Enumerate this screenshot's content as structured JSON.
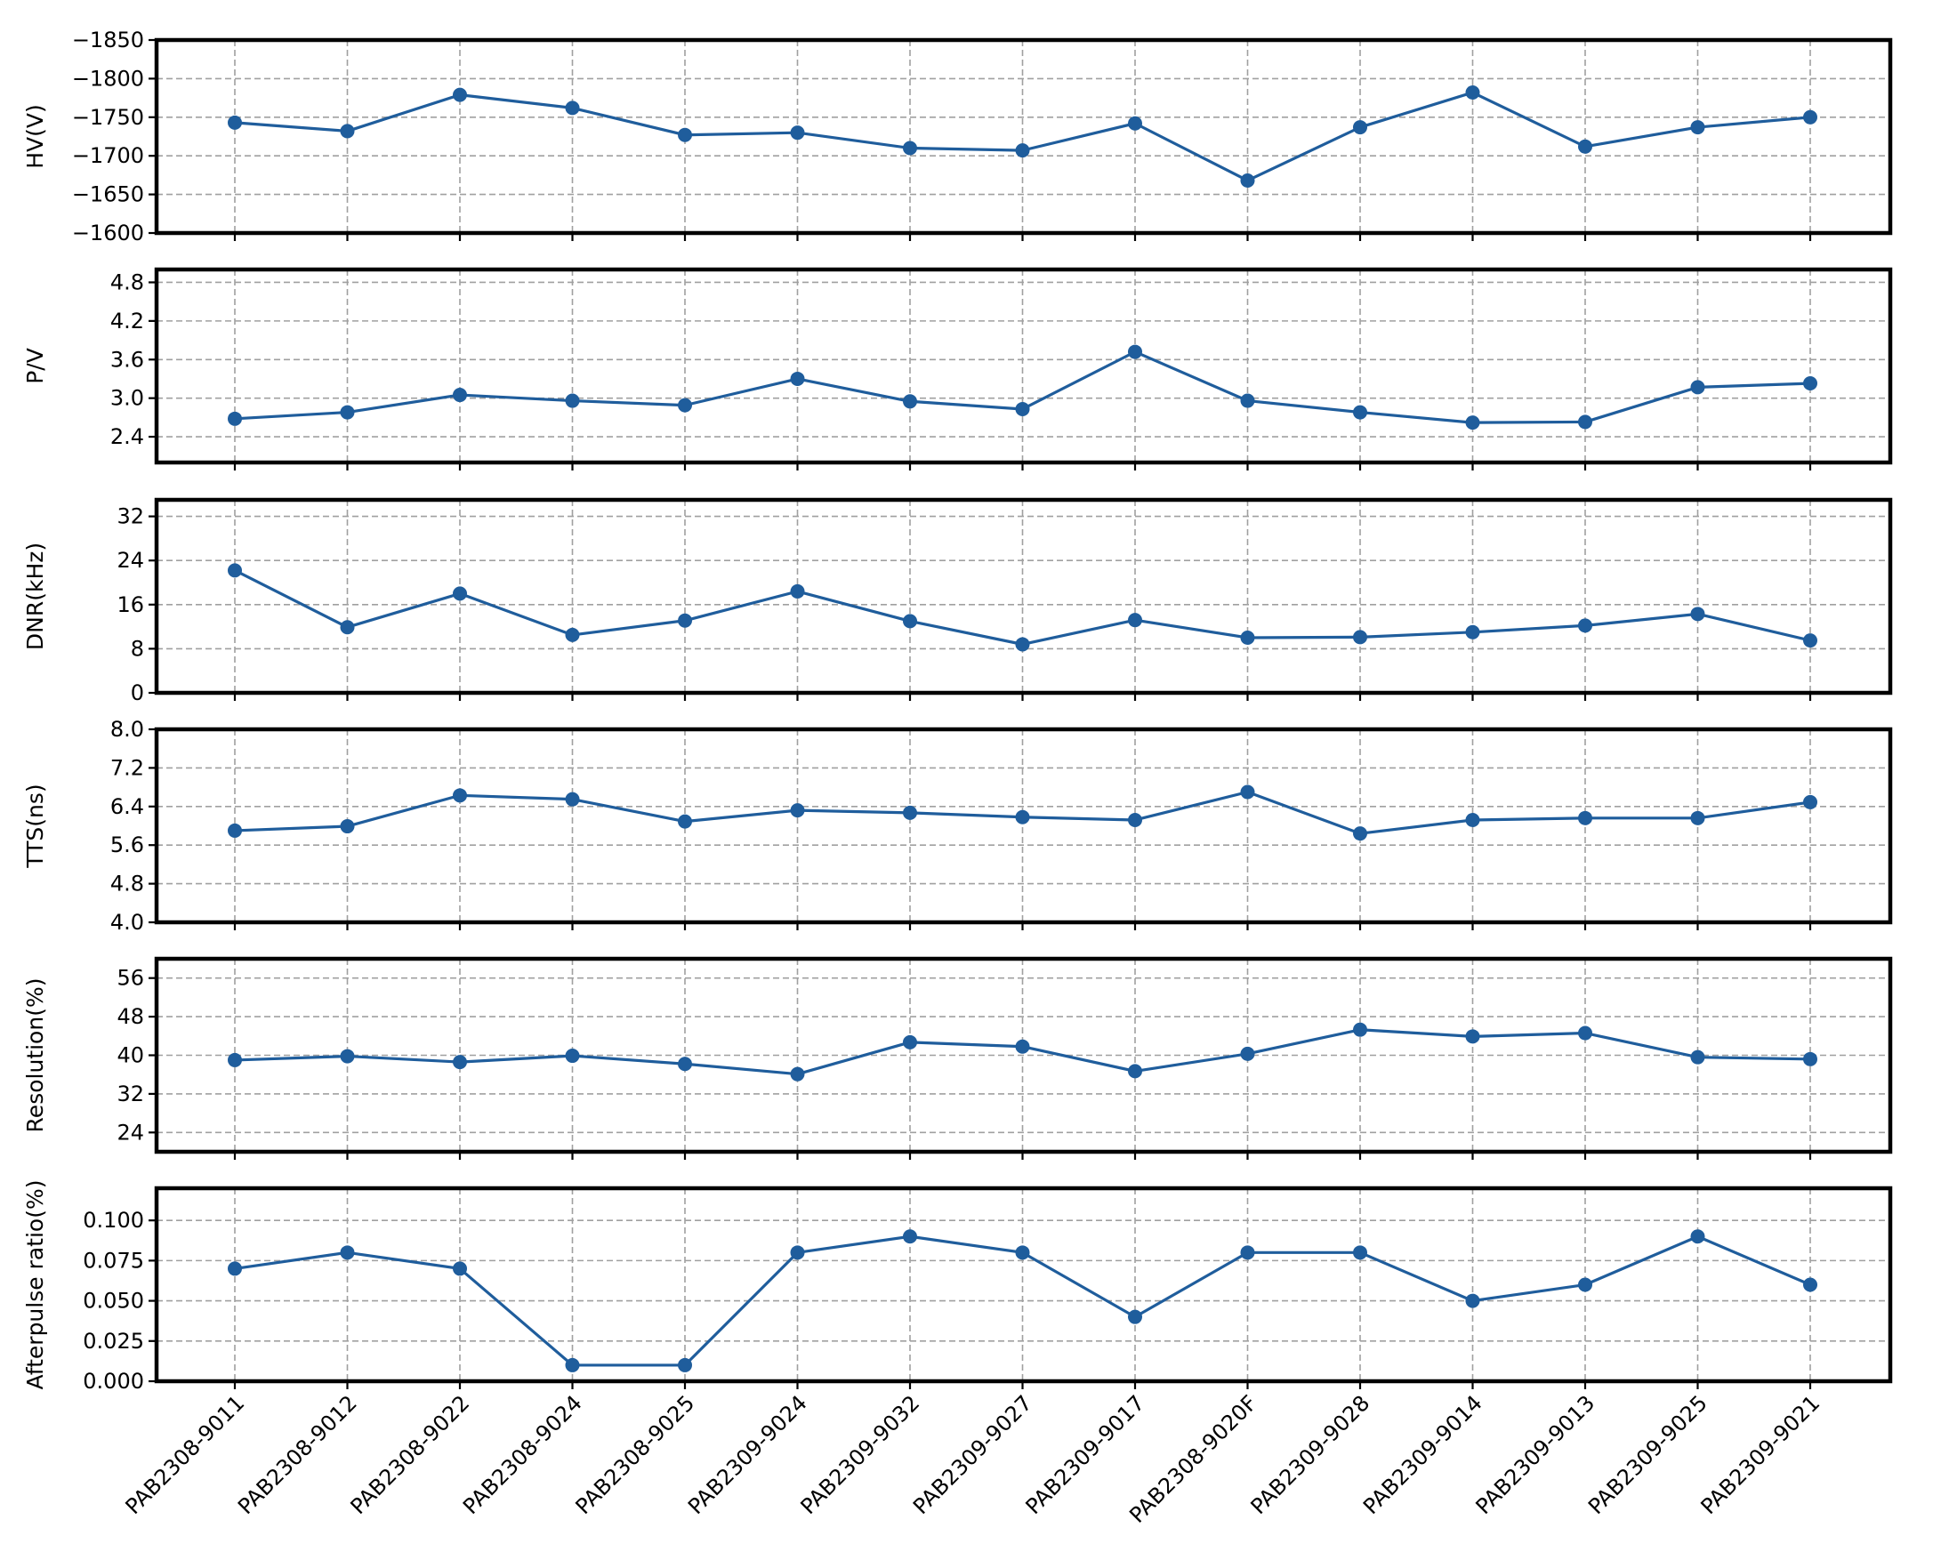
{
  "colors": {
    "series": "#1f5d9c",
    "grid": "#a0a0a0",
    "frame": "#000000"
  },
  "chart_data": [
    {
      "type": "line",
      "ylabel": "HV(V)",
      "categories": [
        "PAB2308-9011",
        "PAB2308-9012",
        "PAB2308-9022",
        "PAB2308-9024",
        "PAB2308-9025",
        "PAB2309-9024",
        "PAB2309-9032",
        "PAB2309-9027",
        "PAB2309-9017",
        "PAB2308-9020F",
        "PAB2309-9028",
        "PAB2309-9014",
        "PAB2309-9013",
        "PAB2309-9025",
        "PAB2309-9021"
      ],
      "values": [
        -1743,
        -1732,
        -1779,
        -1762,
        -1727,
        -1730,
        -1710,
        -1707,
        -1742,
        -1668,
        -1737,
        -1782,
        -1712,
        -1737,
        -1750
      ],
      "ylim": [
        -1600,
        -1850
      ],
      "yticks": [
        -1850,
        -1800,
        -1750,
        -1700,
        -1650,
        -1600
      ],
      "ytick_labels": [
        "−1850",
        "−1800",
        "−1750",
        "−1700",
        "−1650",
        "−1600"
      ],
      "inverted": true,
      "grid": true
    },
    {
      "type": "line",
      "ylabel": "P/V",
      "categories": [
        "PAB2308-9011",
        "PAB2308-9012",
        "PAB2308-9022",
        "PAB2308-9024",
        "PAB2308-9025",
        "PAB2309-9024",
        "PAB2309-9032",
        "PAB2309-9027",
        "PAB2309-9017",
        "PAB2308-9020F",
        "PAB2309-9028",
        "PAB2309-9014",
        "PAB2309-9013",
        "PAB2309-9025",
        "PAB2309-9021"
      ],
      "values": [
        2.68,
        2.78,
        3.05,
        2.96,
        2.89,
        3.3,
        2.95,
        2.83,
        3.72,
        2.96,
        2.78,
        2.62,
        2.63,
        3.17,
        3.23
      ],
      "ylim": [
        2.0,
        5.0
      ],
      "yticks": [
        2.4,
        3.0,
        3.6,
        4.2,
        4.8
      ],
      "ytick_labels": [
        "2.4",
        "3.0",
        "3.6",
        "4.2",
        "4.8"
      ],
      "inverted": false,
      "grid": true
    },
    {
      "type": "line",
      "ylabel": "DNR(kHz)",
      "categories": [
        "PAB2308-9011",
        "PAB2308-9012",
        "PAB2308-9022",
        "PAB2308-9024",
        "PAB2308-9025",
        "PAB2309-9024",
        "PAB2309-9032",
        "PAB2309-9027",
        "PAB2309-9017",
        "PAB2308-9020F",
        "PAB2309-9028",
        "PAB2309-9014",
        "PAB2309-9013",
        "PAB2309-9025",
        "PAB2309-9021"
      ],
      "values": [
        22.2,
        11.9,
        18.0,
        10.5,
        13.1,
        18.4,
        13.0,
        8.8,
        13.2,
        10.0,
        10.1,
        11.0,
        12.2,
        14.3,
        9.5
      ],
      "ylim": [
        0,
        35
      ],
      "yticks": [
        0,
        8,
        16,
        24,
        32
      ],
      "ytick_labels": [
        "0",
        "8",
        "16",
        "24",
        "32"
      ],
      "inverted": false,
      "grid": true
    },
    {
      "type": "line",
      "ylabel": "TTS(ns)",
      "categories": [
        "PAB2308-9011",
        "PAB2308-9012",
        "PAB2308-9022",
        "PAB2308-9024",
        "PAB2308-9025",
        "PAB2309-9024",
        "PAB2309-9032",
        "PAB2309-9027",
        "PAB2309-9017",
        "PAB2308-9020F",
        "PAB2309-9028",
        "PAB2309-9014",
        "PAB2309-9013",
        "PAB2309-9025",
        "PAB2309-9021"
      ],
      "values": [
        5.9,
        5.99,
        6.63,
        6.55,
        6.09,
        6.32,
        6.27,
        6.18,
        6.12,
        6.7,
        5.84,
        6.12,
        6.16,
        6.16,
        6.49
      ],
      "ylim": [
        4.0,
        8.0
      ],
      "yticks": [
        4.0,
        4.8,
        5.6,
        6.4,
        7.2,
        8.0
      ],
      "ytick_labels": [
        "4.0",
        "4.8",
        "5.6",
        "6.4",
        "7.2",
        "8.0"
      ],
      "inverted": false,
      "grid": true
    },
    {
      "type": "line",
      "ylabel": "Resolution(%)",
      "categories": [
        "PAB2308-9011",
        "PAB2308-9012",
        "PAB2308-9022",
        "PAB2308-9024",
        "PAB2308-9025",
        "PAB2309-9024",
        "PAB2309-9032",
        "PAB2309-9027",
        "PAB2309-9017",
        "PAB2308-9020F",
        "PAB2309-9028",
        "PAB2309-9014",
        "PAB2309-9013",
        "PAB2309-9025",
        "PAB2309-9021"
      ],
      "values": [
        39.0,
        39.8,
        38.6,
        39.9,
        38.2,
        36.1,
        42.7,
        41.8,
        36.7,
        40.3,
        45.3,
        43.9,
        44.6,
        39.6,
        39.2
      ],
      "ylim": [
        20,
        60
      ],
      "yticks": [
        24,
        32,
        40,
        48,
        56
      ],
      "ytick_labels": [
        "24",
        "32",
        "40",
        "48",
        "56"
      ],
      "inverted": false,
      "grid": true
    },
    {
      "type": "line",
      "ylabel": "Afterpulse ratio(%)",
      "categories": [
        "PAB2308-9011",
        "PAB2308-9012",
        "PAB2308-9022",
        "PAB2308-9024",
        "PAB2308-9025",
        "PAB2309-9024",
        "PAB2309-9032",
        "PAB2309-9027",
        "PAB2309-9017",
        "PAB2308-9020F",
        "PAB2309-9028",
        "PAB2309-9014",
        "PAB2309-9013",
        "PAB2309-9025",
        "PAB2309-9021"
      ],
      "values": [
        0.07,
        0.08,
        0.07,
        0.01,
        0.01,
        0.08,
        0.09,
        0.08,
        0.04,
        0.08,
        0.08,
        0.05,
        0.06,
        0.09,
        0.06
      ],
      "ylim": [
        0.0,
        0.12
      ],
      "yticks": [
        0.0,
        0.025,
        0.05,
        0.075,
        0.1
      ],
      "ytick_labels": [
        "0.000",
        "0.025",
        "0.050",
        "0.075",
        "0.100"
      ],
      "inverted": false,
      "grid": true,
      "show_xtick_labels": true
    }
  ]
}
